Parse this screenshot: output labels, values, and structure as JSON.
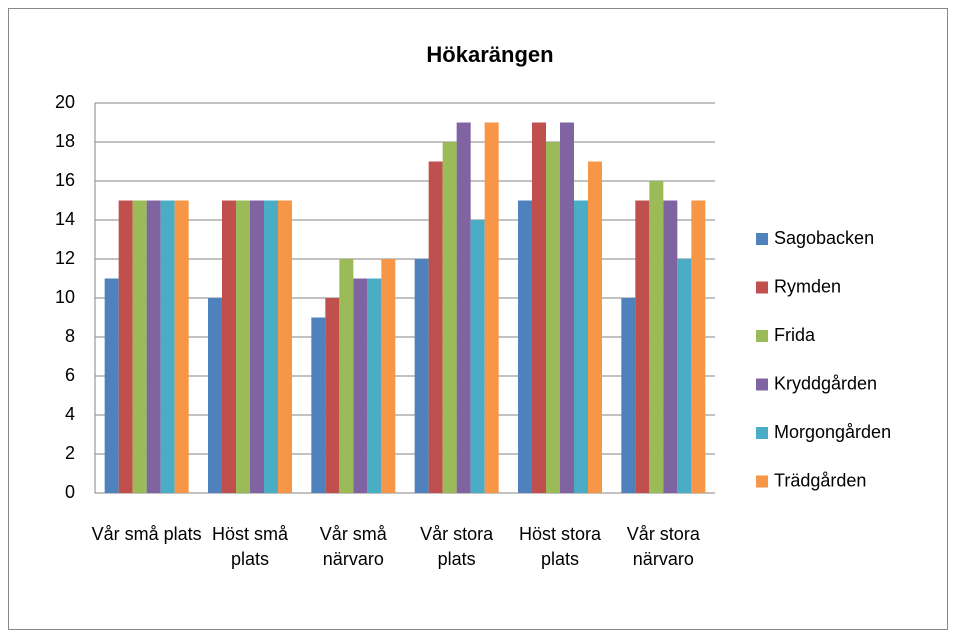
{
  "chart_data": {
    "type": "bar",
    "title": "Hökarängen",
    "categories": [
      "Vår små plats",
      "Höst små plats",
      "Vår små närvaro",
      "Vår stora plats",
      "Höst stora plats",
      "Vår stora närvaro"
    ],
    "series": [
      {
        "name": "Sagobacken",
        "color": "#4f81bd",
        "values": [
          11,
          10,
          9,
          12,
          15,
          10
        ]
      },
      {
        "name": "Rymden",
        "color": "#c0504d",
        "values": [
          15,
          15,
          10,
          17,
          19,
          15
        ]
      },
      {
        "name": "Frida",
        "color": "#9bbb59",
        "values": [
          15,
          15,
          12,
          18,
          18,
          16
        ]
      },
      {
        "name": "Kryddgården",
        "color": "#8064a2",
        "values": [
          15,
          15,
          11,
          19,
          19,
          15
        ]
      },
      {
        "name": "Morgongården",
        "color": "#4bacc6",
        "values": [
          15,
          15,
          11,
          14,
          15,
          12
        ]
      },
      {
        "name": "Trädgården",
        "color": "#f79646",
        "values": [
          15,
          15,
          12,
          19,
          17,
          15
        ]
      }
    ],
    "ylim": [
      0,
      20
    ],
    "yticks": [
      0,
      2,
      4,
      6,
      8,
      10,
      12,
      14,
      16,
      18,
      20
    ],
    "grid": true,
    "legend": "right"
  }
}
